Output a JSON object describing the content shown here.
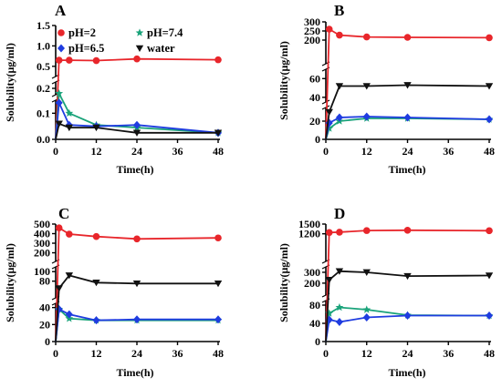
{
  "chart_data": [
    {
      "type": "line",
      "panel": "A",
      "xlabel": "Time(h)",
      "ylabel": "Solubility(μg/ml)",
      "x_ticks": [
        "0",
        "12",
        "24",
        "36",
        "48"
      ],
      "y_segments": [
        {
          "range": [
            0,
            0.15
          ],
          "ticks": [
            "0.0",
            "0.1"
          ]
        },
        {
          "range": [
            0.15,
            0.25
          ],
          "ticks": [
            "0.2"
          ]
        },
        {
          "range": [
            0.25,
            1.5
          ],
          "ticks": [
            "0.5",
            "1.0",
            "1.5"
          ]
        }
      ],
      "legend": {
        "position": "top",
        "entries": [
          "pH=2",
          "pH=7.4",
          "pH=6.5",
          "water"
        ]
      },
      "series": [
        {
          "name": "pH=2",
          "color": "#e8262b",
          "marker": "circle",
          "x": [
            0,
            1,
            4,
            12,
            24,
            48
          ],
          "y": [
            0.0,
            0.65,
            0.65,
            0.64,
            0.68,
            0.66
          ]
        },
        {
          "name": "pH=7.4",
          "color": "#1aa37a",
          "marker": "star",
          "x": [
            0,
            1,
            4,
            12,
            24,
            48
          ],
          "y": [
            0.0,
            0.16,
            0.1,
            0.055,
            0.045,
            0.025
          ]
        },
        {
          "name": "pH=6.5",
          "color": "#1f3ce0",
          "marker": "diamond",
          "x": [
            0,
            1,
            4,
            12,
            24,
            48
          ],
          "y": [
            0.0,
            0.14,
            0.055,
            0.05,
            0.055,
            0.025
          ]
        },
        {
          "name": "water",
          "color": "#111111",
          "marker": "triangle-down",
          "x": [
            0,
            1,
            4,
            12,
            24,
            48
          ],
          "y": [
            0.0,
            0.06,
            0.045,
            0.045,
            0.025,
            0.025
          ]
        }
      ]
    },
    {
      "type": "line",
      "panel": "B",
      "xlabel": "Time(h)",
      "ylabel": "Solubility(μg/ml)",
      "x_ticks": [
        "0",
        "12",
        "24",
        "36",
        "48"
      ],
      "y_segments": [
        {
          "range": [
            0,
            35
          ],
          "ticks": [
            "0",
            "20"
          ]
        },
        {
          "range": [
            35,
            70
          ],
          "ticks": [
            "40",
            "60"
          ]
        },
        {
          "range": [
            70,
            300
          ],
          "ticks": [
            "200",
            "250",
            "300"
          ]
        }
      ],
      "series": [
        {
          "name": "pH=2",
          "color": "#e8262b",
          "marker": "circle",
          "x": [
            0,
            1,
            4,
            12,
            24,
            48
          ],
          "y": [
            0,
            260,
            227,
            217,
            215,
            213
          ]
        },
        {
          "name": "pH=7.4",
          "color": "#1aa37a",
          "marker": "star",
          "x": [
            0,
            1,
            4,
            12,
            24,
            48
          ],
          "y": [
            0,
            12,
            20,
            23,
            23,
            22
          ]
        },
        {
          "name": "pH=6.5",
          "color": "#1f3ce0",
          "marker": "diamond",
          "x": [
            0,
            1,
            4,
            12,
            24,
            48
          ],
          "y": [
            0,
            18,
            24,
            25,
            24,
            22
          ]
        },
        {
          "name": "water",
          "color": "#111111",
          "marker": "triangle-down",
          "x": [
            0,
            1,
            4,
            12,
            24,
            48
          ],
          "y": [
            0,
            30,
            52,
            52,
            53,
            52
          ]
        }
      ]
    },
    {
      "type": "line",
      "panel": "C",
      "xlabel": "Time(h)",
      "ylabel": "Solubility(μg/ml)",
      "x_ticks": [
        "0",
        "12",
        "24",
        "36",
        "48"
      ],
      "y_segments": [
        {
          "range": [
            0,
            45
          ],
          "ticks": [
            "0",
            "20",
            "40"
          ]
        },
        {
          "range": [
            45,
            110
          ],
          "ticks": [
            "80",
            "100"
          ]
        },
        {
          "range": [
            110,
            500
          ],
          "ticks": [
            "200",
            "300",
            "400",
            "500"
          ]
        }
      ],
      "series": [
        {
          "name": "pH=2",
          "color": "#e8262b",
          "marker": "circle",
          "x": [
            0,
            1,
            4,
            12,
            24,
            48
          ],
          "y": [
            0,
            460,
            395,
            370,
            345,
            355
          ]
        },
        {
          "name": "pH=7.4",
          "color": "#1aa37a",
          "marker": "star",
          "x": [
            0,
            1,
            4,
            12,
            24,
            48
          ],
          "y": [
            0,
            38,
            27,
            25,
            25,
            25
          ]
        },
        {
          "name": "pH=6.5",
          "color": "#1f3ce0",
          "marker": "diamond",
          "x": [
            0,
            1,
            4,
            12,
            24,
            48
          ],
          "y": [
            0,
            38,
            32,
            25,
            26,
            26
          ]
        },
        {
          "name": "water",
          "color": "#111111",
          "marker": "triangle-down",
          "x": [
            0,
            1,
            4,
            12,
            24,
            48
          ],
          "y": [
            0,
            65,
            92,
            77,
            75,
            75
          ]
        }
      ]
    },
    {
      "type": "line",
      "panel": "D",
      "xlabel": "Time(h)",
      "ylabel": "Solubility(μg/ml)",
      "x_ticks": [
        "0",
        "12",
        "24",
        "36",
        "48"
      ],
      "y_segments": [
        {
          "range": [
            0,
            90
          ],
          "ticks": [
            "0",
            "40",
            "80"
          ]
        },
        {
          "range": [
            90,
            350
          ],
          "ticks": [
            "200",
            "300"
          ]
        },
        {
          "range": [
            350,
            1500
          ],
          "ticks": [
            "1200",
            "1500"
          ]
        }
      ],
      "series": [
        {
          "name": "pH=2",
          "color": "#e8262b",
          "marker": "circle",
          "x": [
            0,
            1,
            4,
            12,
            24,
            48
          ],
          "y": [
            0,
            1240,
            1250,
            1300,
            1310,
            1295
          ]
        },
        {
          "name": "pH=7.4",
          "color": "#1aa37a",
          "marker": "star",
          "x": [
            0,
            1,
            4,
            12,
            24,
            48
          ],
          "y": [
            0,
            62,
            75,
            70,
            58,
            57
          ]
        },
        {
          "name": "pH=6.5",
          "color": "#1f3ce0",
          "marker": "diamond",
          "x": [
            0,
            1,
            4,
            12,
            24,
            48
          ],
          "y": [
            0,
            48,
            43,
            53,
            57,
            57
          ]
        },
        {
          "name": "water",
          "color": "#111111",
          "marker": "triangle-down",
          "x": [
            0,
            1,
            4,
            12,
            24,
            48
          ],
          "y": [
            0,
            230,
            310,
            300,
            265,
            270
          ]
        }
      ]
    }
  ]
}
